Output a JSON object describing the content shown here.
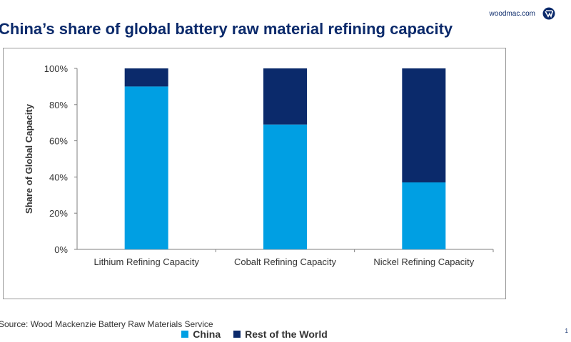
{
  "header": {
    "brand_text": "woodmac.com",
    "logo_icon": "woodmac-logo-icon"
  },
  "title": "China’s share of global battery raw material refining capacity",
  "chart_data": {
    "type": "bar",
    "stacked": true,
    "categories": [
      "Lithium Refining Capacity",
      "Cobalt Refining Capacity",
      "Nickel Refining Capacity"
    ],
    "series": [
      {
        "name": "China",
        "values": [
          90,
          69,
          37
        ],
        "color": "#009fe3"
      },
      {
        "name": "Rest of the World",
        "values": [
          10,
          31,
          63
        ],
        "color": "#0b2a6b"
      }
    ],
    "title": "",
    "xlabel": "",
    "ylabel": "Share of Global Capacity",
    "ylim": [
      0,
      100
    ],
    "yticks": [
      "0%",
      "20%",
      "40%",
      "60%",
      "80%",
      "100%"
    ],
    "grid": false,
    "legend": "bottom"
  },
  "legend": {
    "china_label": "China",
    "row_label": "Rest of the World"
  },
  "footer": {
    "source": "Source: Wood Mackenzie Battery Raw Materials Service",
    "page_number": "1"
  }
}
